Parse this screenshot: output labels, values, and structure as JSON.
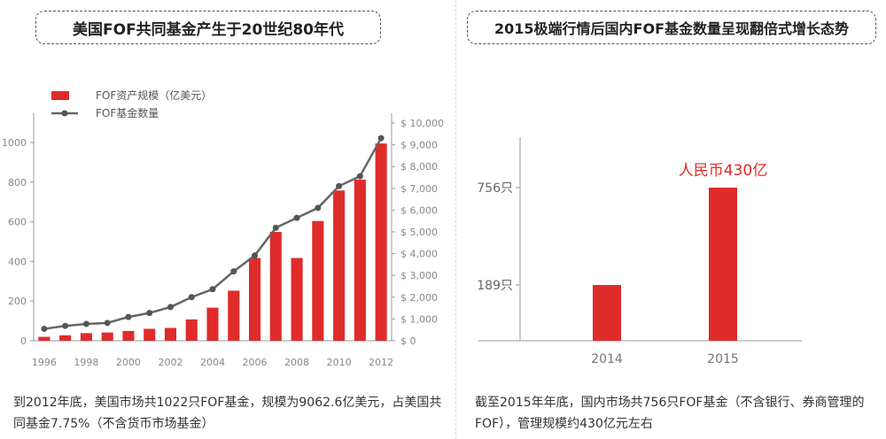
{
  "colors": {
    "bar": "#e02b2b",
    "line": "#666666",
    "axis": "#999999",
    "tick_text": "#888888"
  },
  "left_panel": {
    "title": "美国FOF共同基金产生于20世纪80年代",
    "caption": "到2012年底，美国市场共1022只FOF基金，规模为9062.6亿美元，占美国共同基金7.75%（不含货币市场基金）"
  },
  "right_panel": {
    "title": "2015极端行情后国内FOF基金数量呈现翻倍式增长态势",
    "caption": "截至2015年年底，国内市场共756只FOF基金（不含银行、券商管理的FOF），管理规模约430亿元左右"
  },
  "chart_data": [
    {
      "type": "bar",
      "x": [
        1996,
        1997,
        1998,
        1999,
        2000,
        2001,
        2002,
        2003,
        2004,
        2005,
        2006,
        2007,
        2008,
        2009,
        2010,
        2011,
        2012
      ],
      "x_tick_labels": [
        "1996",
        "1998",
        "2000",
        "2002",
        "2004",
        "2006",
        "2008",
        "2010",
        "2012"
      ],
      "series": [
        {
          "name": "FOF资产规模（亿美元）",
          "type": "bar",
          "axis": "right",
          "values": [
            180,
            250,
            350,
            380,
            450,
            550,
            590,
            980,
            1520,
            2300,
            3800,
            5000,
            3800,
            5500,
            6900,
            7400,
            9060
          ]
        },
        {
          "name": "FOF基金数量",
          "type": "line",
          "axis": "left",
          "values": [
            60,
            75,
            85,
            90,
            120,
            140,
            170,
            220,
            260,
            350,
            430,
            570,
            620,
            670,
            780,
            830,
            1022
          ]
        }
      ],
      "left_axis": {
        "ylim": [
          0,
          1100
        ],
        "ticks": [
          0,
          200,
          400,
          600,
          800,
          1000
        ],
        "tick_labels": [
          "0",
          "200",
          "400",
          "600",
          "800",
          "1000"
        ]
      },
      "right_axis": {
        "ylim": [
          0,
          10000
        ],
        "ticks": [
          0,
          1000,
          2000,
          3000,
          4000,
          5000,
          6000,
          7000,
          8000,
          9000,
          10000
        ],
        "tick_labels": [
          "$ 0",
          "$ 1,000",
          "$ 2,000",
          "$ 3,000",
          "$ 4,000",
          "$ 5,000",
          "$ 6,000",
          "$ 7,000",
          "$ 8,000",
          "$ 9,000",
          "$ 10,000"
        ]
      },
      "legend": "top-left"
    },
    {
      "type": "bar",
      "categories": [
        "2014",
        "2015"
      ],
      "values": [
        189,
        756
      ],
      "ytick_values": [
        189,
        756
      ],
      "ytick_labels": [
        "189只",
        "756只"
      ],
      "annotation": {
        "category": "2015",
        "text": "人民币430亿"
      }
    }
  ]
}
